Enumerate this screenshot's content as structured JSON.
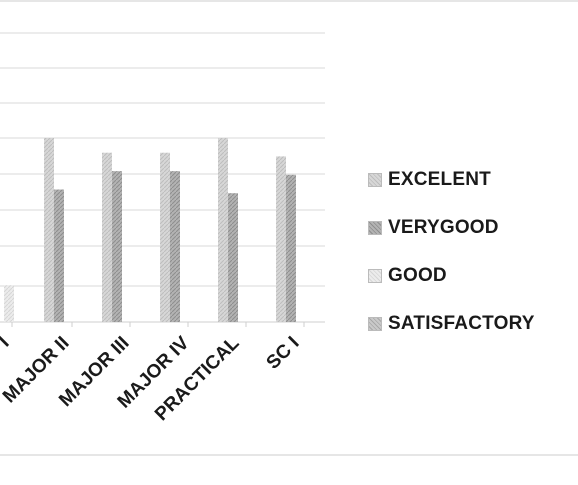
{
  "chart_data": {
    "type": "bar",
    "categories": [
      "I",
      "MAJOR II",
      "MAJOR III",
      "MAJOR IV",
      "PRACTICAL",
      "SC I"
    ],
    "series": [
      {
        "name": "EXCELENT",
        "values": [
          1,
          50,
          46,
          46,
          50,
          45
        ]
      },
      {
        "name": "VERYGOOD",
        "values": [
          0,
          36,
          41,
          41,
          35,
          40
        ]
      },
      {
        "name": "GOOD",
        "values": [
          10,
          0,
          0,
          0,
          0,
          0
        ]
      },
      {
        "name": "SATISFACTORY",
        "values": [
          0,
          0,
          0,
          0,
          0,
          0
        ]
      }
    ],
    "ylim": [
      0,
      50
    ],
    "grid": true,
    "legend_position": "right",
    "title": "",
    "xlabel": "",
    "ylabel": ""
  },
  "colors": {
    "EXCELENT": "#cfcfcf",
    "VERYGOOD": "#a9a9a9",
    "GOOD": "#e6e6e6",
    "SATISFACTORY": "#bdbdbd",
    "grid": "#d8d8d8"
  }
}
